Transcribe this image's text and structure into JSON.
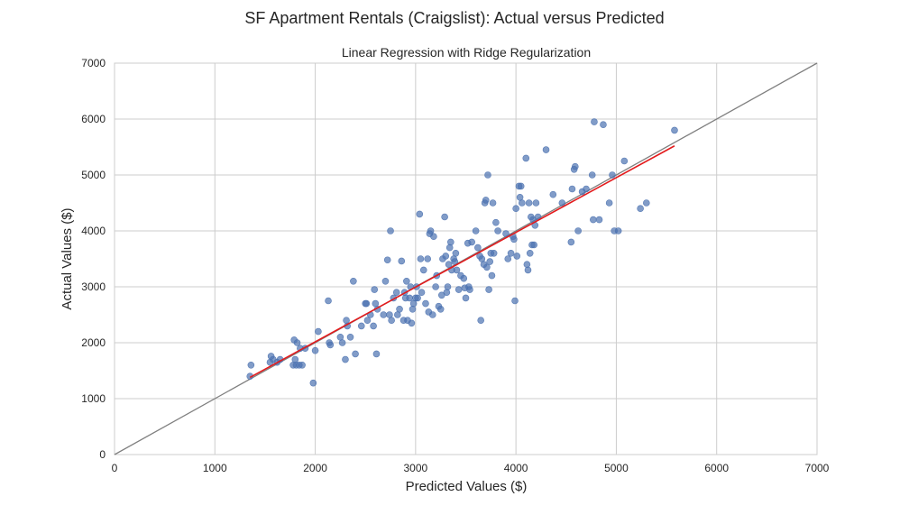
{
  "chart_data": {
    "type": "scatter",
    "suptitle": "SF Apartment Rentals (Craigslist): Actual versus Predicted",
    "title": "Linear Regression with Ridge Regularization",
    "xlabel": "Predicted Values ($)",
    "ylabel": "Actual Values ($)",
    "xlim": [
      0,
      7000
    ],
    "ylim": [
      0,
      7000
    ],
    "xticks": [
      0,
      1000,
      2000,
      3000,
      4000,
      5000,
      6000,
      7000
    ],
    "yticks": [
      0,
      1000,
      2000,
      3000,
      4000,
      5000,
      6000,
      7000
    ],
    "xtick_labels": [
      "0",
      "1000",
      "2000",
      "3000",
      "4000",
      "5000",
      "6000",
      "7000"
    ],
    "ytick_labels": [
      "0",
      "1000",
      "2000",
      "3000",
      "4000",
      "5000",
      "6000",
      "7000"
    ],
    "grid": true,
    "colors": {
      "points": "#4c72b0",
      "fit_line": "#e31a1c",
      "reference_line": "#7f7f7f",
      "grid": "#cccccc"
    },
    "reference_line": {
      "from": [
        0,
        0
      ],
      "to": [
        7000,
        7000
      ]
    },
    "fit_line": {
      "from": [
        1350,
        1380
      ],
      "to": [
        5580,
        5520
      ]
    },
    "points": [
      [
        1350,
        1400
      ],
      [
        1360,
        1600
      ],
      [
        1550,
        1650
      ],
      [
        1560,
        1760
      ],
      [
        1580,
        1700
      ],
      [
        1620,
        1650
      ],
      [
        1650,
        1700
      ],
      [
        1780,
        1600
      ],
      [
        1790,
        2050
      ],
      [
        1800,
        1700
      ],
      [
        1810,
        1600
      ],
      [
        1820,
        2000
      ],
      [
        1840,
        1600
      ],
      [
        1850,
        1900
      ],
      [
        1870,
        1600
      ],
      [
        1900,
        1900
      ],
      [
        1980,
        1280
      ],
      [
        2000,
        1860
      ],
      [
        2030,
        2200
      ],
      [
        2130,
        2750
      ],
      [
        2140,
        2000
      ],
      [
        2150,
        1960
      ],
      [
        2250,
        2100
      ],
      [
        2270,
        2000
      ],
      [
        2300,
        1700
      ],
      [
        2310,
        2400
      ],
      [
        2320,
        2300
      ],
      [
        2350,
        2100
      ],
      [
        2380,
        3100
      ],
      [
        2400,
        1800
      ],
      [
        2460,
        2300
      ],
      [
        2500,
        2700
      ],
      [
        2510,
        2700
      ],
      [
        2520,
        2400
      ],
      [
        2550,
        2500
      ],
      [
        2580,
        2300
      ],
      [
        2590,
        2950
      ],
      [
        2600,
        2700
      ],
      [
        2610,
        1800
      ],
      [
        2620,
        2600
      ],
      [
        2680,
        2500
      ],
      [
        2700,
        3100
      ],
      [
        2720,
        3480
      ],
      [
        2740,
        2500
      ],
      [
        2750,
        4000
      ],
      [
        2760,
        2400
      ],
      [
        2780,
        2800
      ],
      [
        2810,
        2900
      ],
      [
        2820,
        2500
      ],
      [
        2840,
        2600
      ],
      [
        2860,
        3460
      ],
      [
        2880,
        2400
      ],
      [
        2890,
        2900
      ],
      [
        2900,
        2800
      ],
      [
        2910,
        3100
      ],
      [
        2920,
        2400
      ],
      [
        2940,
        2800
      ],
      [
        2950,
        3000
      ],
      [
        2960,
        2350
      ],
      [
        2970,
        2600
      ],
      [
        2980,
        2700
      ],
      [
        3000,
        2800
      ],
      [
        3010,
        3000
      ],
      [
        3020,
        2800
      ],
      [
        3040,
        4300
      ],
      [
        3050,
        3500
      ],
      [
        3060,
        2900
      ],
      [
        3080,
        3300
      ],
      [
        3100,
        2700
      ],
      [
        3120,
        3500
      ],
      [
        3130,
        2550
      ],
      [
        3140,
        3950
      ],
      [
        3150,
        4000
      ],
      [
        3170,
        2500
      ],
      [
        3180,
        3900
      ],
      [
        3200,
        3000
      ],
      [
        3210,
        3200
      ],
      [
        3230,
        2650
      ],
      [
        3250,
        2600
      ],
      [
        3260,
        2850
      ],
      [
        3270,
        3500
      ],
      [
        3290,
        4250
      ],
      [
        3300,
        3550
      ],
      [
        3310,
        2900
      ],
      [
        3320,
        3000
      ],
      [
        3330,
        3400
      ],
      [
        3340,
        3700
      ],
      [
        3350,
        3800
      ],
      [
        3360,
        3300
      ],
      [
        3380,
        3500
      ],
      [
        3390,
        3450
      ],
      [
        3400,
        3600
      ],
      [
        3410,
        3300
      ],
      [
        3430,
        2950
      ],
      [
        3450,
        3200
      ],
      [
        3480,
        3150
      ],
      [
        3490,
        2980
      ],
      [
        3500,
        2800
      ],
      [
        3520,
        3780
      ],
      [
        3530,
        3000
      ],
      [
        3540,
        2950
      ],
      [
        3560,
        3800
      ],
      [
        3600,
        4000
      ],
      [
        3620,
        3700
      ],
      [
        3640,
        3550
      ],
      [
        3650,
        2400
      ],
      [
        3660,
        3500
      ],
      [
        3680,
        3400
      ],
      [
        3690,
        4500
      ],
      [
        3700,
        4550
      ],
      [
        3710,
        3350
      ],
      [
        3720,
        5000
      ],
      [
        3730,
        2950
      ],
      [
        3740,
        3450
      ],
      [
        3750,
        3600
      ],
      [
        3760,
        3200
      ],
      [
        3770,
        4500
      ],
      [
        3780,
        3600
      ],
      [
        3800,
        4150
      ],
      [
        3820,
        4000
      ],
      [
        3900,
        3950
      ],
      [
        3920,
        3500
      ],
      [
        3950,
        3600
      ],
      [
        3970,
        3900
      ],
      [
        3980,
        3850
      ],
      [
        3990,
        2750
      ],
      [
        4000,
        4400
      ],
      [
        4010,
        3550
      ],
      [
        4030,
        4800
      ],
      [
        4040,
        4600
      ],
      [
        4050,
        4800
      ],
      [
        4060,
        4500
      ],
      [
        4100,
        5300
      ],
      [
        4110,
        3400
      ],
      [
        4120,
        3300
      ],
      [
        4130,
        4500
      ],
      [
        4140,
        3600
      ],
      [
        4150,
        4250
      ],
      [
        4160,
        3750
      ],
      [
        4170,
        4200
      ],
      [
        4180,
        3750
      ],
      [
        4190,
        4100
      ],
      [
        4200,
        4500
      ],
      [
        4220,
        4250
      ],
      [
        4300,
        5450
      ],
      [
        4370,
        4650
      ],
      [
        4460,
        4500
      ],
      [
        4550,
        3800
      ],
      [
        4560,
        4750
      ],
      [
        4580,
        5100
      ],
      [
        4590,
        5150
      ],
      [
        4620,
        4000
      ],
      [
        4660,
        4700
      ],
      [
        4700,
        4750
      ],
      [
        4760,
        5000
      ],
      [
        4770,
        4200
      ],
      [
        4780,
        5950
      ],
      [
        4830,
        4200
      ],
      [
        4870,
        5900
      ],
      [
        4930,
        4500
      ],
      [
        4960,
        5000
      ],
      [
        4980,
        4000
      ],
      [
        5020,
        4000
      ],
      [
        5080,
        5250
      ],
      [
        5240,
        4400
      ],
      [
        5300,
        4500
      ],
      [
        5580,
        5800
      ]
    ]
  }
}
